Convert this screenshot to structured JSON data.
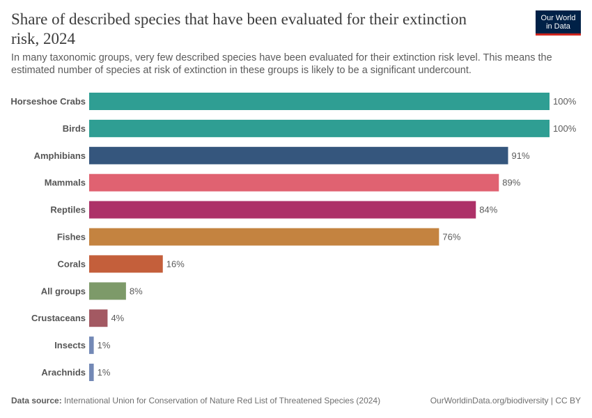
{
  "header": {
    "title": "Share of described species that have been evaluated for their extinction risk, 2024",
    "subtitle": "In many taxonomic groups, very few described species have been evaluated for their extinction risk level. This means the estimated number of species at risk of extinction in these groups is likely to be a significant undercount.",
    "logo_line1": "Our World",
    "logo_line2": "in Data"
  },
  "footer": {
    "source_label": "Data source:",
    "source_text": "International Union for Conservation of Nature Red List of Threatened Species (2024)",
    "credit": "OurWorldinData.org/biodiversity | CC BY"
  },
  "chart_data": {
    "type": "bar",
    "orientation": "horizontal",
    "title": "Share of described species that have been evaluated for their extinction risk, 2024",
    "xlim": [
      0,
      100
    ],
    "unit": "%",
    "categories": [
      "Horseshoe Crabs",
      "Birds",
      "Amphibians",
      "Mammals",
      "Reptiles",
      "Fishes",
      "Corals",
      "All groups",
      "Crustaceans",
      "Insects",
      "Arachnids"
    ],
    "values": [
      100,
      100,
      91,
      89,
      84,
      76,
      16,
      8,
      4,
      1,
      1
    ],
    "labels": [
      "100%",
      "100%",
      "91%",
      "89%",
      "84%",
      "76%",
      "16%",
      "8%",
      "4%",
      "1%",
      "1%"
    ],
    "colors": [
      "#2f9e93",
      "#2f9e93",
      "#35567d",
      "#e06271",
      "#ad3168",
      "#c48340",
      "#c45f3b",
      "#7d9a69",
      "#a35962",
      "#7389b6",
      "#7389b6"
    ]
  }
}
